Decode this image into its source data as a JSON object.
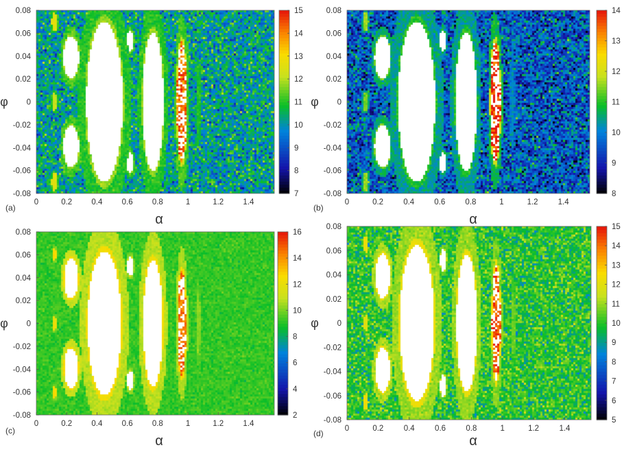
{
  "chart_data": [
    {
      "panel": "(a)",
      "type": "heatmap",
      "xlabel": "α",
      "ylabel": "φ",
      "xlim": [
        0,
        1.57
      ],
      "ylim": [
        -0.08,
        0.08
      ],
      "xticks": [
        "0",
        "0.2",
        "0.4",
        "0.6",
        "0.8",
        "1",
        "1.2",
        "1.4"
      ],
      "yticks": [
        "0.08",
        "0.06",
        "0.04",
        "0.02",
        "0",
        "-0.02",
        "-0.04",
        "-0.06",
        "-0.08"
      ],
      "colorbar": {
        "min": 7,
        "max": 15,
        "ticks": [
          "15",
          "14",
          "13",
          "12",
          "11",
          "10",
          "9",
          "8",
          "7"
        ]
      },
      "background": {
        "base": 10.2,
        "noise": 1.4
      },
      "islands": [
        {
          "x": 0.45,
          "y": 0.0,
          "rx": 0.13,
          "ry": 0.076,
          "interior": "white",
          "rim": 11.8,
          "halo": 11.0
        },
        {
          "x": 0.77,
          "y": 0.0,
          "rx": 0.075,
          "ry": 0.066,
          "interior": "white",
          "rim": 11.8,
          "halo": 11.0
        },
        {
          "x": 0.96,
          "y": 0.0,
          "rx": 0.036,
          "ry": 0.057,
          "interior": "dots",
          "rim": 12.3,
          "halo": 11.2
        },
        {
          "x": 0.23,
          "y": 0.039,
          "rx": 0.055,
          "ry": 0.02,
          "interior": "white",
          "rim": 11.8,
          "halo": 11.2
        },
        {
          "x": 0.23,
          "y": -0.039,
          "rx": 0.055,
          "ry": 0.02,
          "interior": "white",
          "rim": 11.8,
          "halo": 11.2
        },
        {
          "x": 0.12,
          "y": 0.07,
          "rx": 0.02,
          "ry": 0.008,
          "interior": "solid",
          "rim": 12.6,
          "halo": 11.0
        },
        {
          "x": 0.12,
          "y": -0.07,
          "rx": 0.02,
          "ry": 0.008,
          "interior": "solid",
          "rim": 12.6,
          "halo": 11.0
        },
        {
          "x": 0.12,
          "y": 0.0,
          "rx": 0.018,
          "ry": 0.008,
          "interior": "solid",
          "rim": 12.2,
          "halo": 11.0
        },
        {
          "x": 0.62,
          "y": 0.053,
          "rx": 0.025,
          "ry": 0.01,
          "interior": "white",
          "rim": 11.6,
          "halo": 11.0
        },
        {
          "x": 0.62,
          "y": -0.053,
          "rx": 0.025,
          "ry": 0.01,
          "interior": "white",
          "rim": 11.6,
          "halo": 11.0
        },
        {
          "x": 1.07,
          "y": 0.0,
          "rx": 0.012,
          "ry": 0.03,
          "interior": "none",
          "rim": 11.0,
          "halo": 10.8
        }
      ]
    },
    {
      "panel": "(b)",
      "type": "heatmap",
      "xlabel": "α",
      "ylabel": "φ",
      "xlim": [
        0,
        1.57
      ],
      "ylim": [
        -0.08,
        0.08
      ],
      "xticks": [
        "0",
        "0.2",
        "0.4",
        "0.6",
        "0.8",
        "1",
        "1.2",
        "1.4"
      ],
      "yticks": [
        "0.08",
        "0.06",
        "0.04",
        "0.02",
        "0",
        "-0.02",
        "-0.04",
        "-0.06",
        "-0.08"
      ],
      "colorbar": {
        "min": 8,
        "max": 14,
        "ticks": [
          "14",
          "13",
          "12",
          "11",
          "10",
          "9",
          "8"
        ]
      },
      "background": {
        "base": 9.6,
        "noise": 1.3
      },
      "islands": [
        {
          "x": 0.45,
          "y": 0.0,
          "rx": 0.13,
          "ry": 0.076,
          "interior": "white",
          "rim": 11.0,
          "halo": 10.4
        },
        {
          "x": 0.77,
          "y": 0.0,
          "rx": 0.075,
          "ry": 0.066,
          "interior": "white",
          "rim": 11.0,
          "halo": 10.4
        },
        {
          "x": 0.96,
          "y": 0.0,
          "rx": 0.036,
          "ry": 0.057,
          "interior": "dots",
          "rim": 12.0,
          "halo": 10.8
        },
        {
          "x": 0.23,
          "y": 0.039,
          "rx": 0.055,
          "ry": 0.02,
          "interior": "white",
          "rim": 11.3,
          "halo": 10.6
        },
        {
          "x": 0.23,
          "y": -0.039,
          "rx": 0.055,
          "ry": 0.02,
          "interior": "white",
          "rim": 11.3,
          "halo": 10.6
        },
        {
          "x": 0.12,
          "y": 0.07,
          "rx": 0.02,
          "ry": 0.008,
          "interior": "solid",
          "rim": 11.6,
          "halo": 10.4
        },
        {
          "x": 0.12,
          "y": -0.07,
          "rx": 0.02,
          "ry": 0.008,
          "interior": "solid",
          "rim": 11.6,
          "halo": 10.4
        },
        {
          "x": 0.12,
          "y": 0.0,
          "rx": 0.018,
          "ry": 0.008,
          "interior": "solid",
          "rim": 11.4,
          "halo": 10.4
        },
        {
          "x": 0.62,
          "y": 0.053,
          "rx": 0.025,
          "ry": 0.01,
          "interior": "white",
          "rim": 10.8,
          "halo": 10.3
        },
        {
          "x": 0.62,
          "y": -0.053,
          "rx": 0.025,
          "ry": 0.01,
          "interior": "white",
          "rim": 10.8,
          "halo": 10.3
        },
        {
          "x": 1.07,
          "y": 0.0,
          "rx": 0.012,
          "ry": 0.03,
          "interior": "none",
          "rim": 10.2,
          "halo": 10.0
        }
      ]
    },
    {
      "panel": "(c)",
      "type": "heatmap",
      "xlabel": "α",
      "ylabel": "φ",
      "xlim": [
        0,
        1.57
      ],
      "ylim": [
        -0.08,
        0.08
      ],
      "xticks": [
        "0",
        "0.2",
        "0.4",
        "0.6",
        "0.8",
        "1",
        "1.2",
        "1.4"
      ],
      "yticks": [
        "0.08",
        "0.06",
        "0.04",
        "0.02",
        "0",
        "-0.02",
        "-0.04",
        "-0.06",
        "-0.08"
      ],
      "colorbar": {
        "min": 2,
        "max": 16,
        "ticks": [
          "16",
          "14",
          "12",
          "10",
          "8",
          "6",
          "4",
          "2"
        ]
      },
      "background": {
        "base": 9.2,
        "noise": 0.6
      },
      "islands": [
        {
          "x": 0.45,
          "y": 0.0,
          "rx": 0.12,
          "ry": 0.068,
          "interior": "white",
          "rim": 12.4,
          "halo": 10.8
        },
        {
          "x": 0.77,
          "y": 0.0,
          "rx": 0.07,
          "ry": 0.06,
          "interior": "white",
          "rim": 12.4,
          "halo": 10.8
        },
        {
          "x": 0.96,
          "y": 0.0,
          "rx": 0.03,
          "ry": 0.05,
          "interior": "dots",
          "rim": 12.6,
          "halo": 10.6
        },
        {
          "x": 0.23,
          "y": 0.039,
          "rx": 0.05,
          "ry": 0.019,
          "interior": "white",
          "rim": 12.6,
          "halo": 11.0
        },
        {
          "x": 0.23,
          "y": -0.039,
          "rx": 0.05,
          "ry": 0.019,
          "interior": "white",
          "rim": 12.6,
          "halo": 11.0
        },
        {
          "x": 0.12,
          "y": 0.06,
          "rx": 0.012,
          "ry": 0.006,
          "interior": "solid",
          "rim": 12.6,
          "halo": 10.0
        },
        {
          "x": 0.12,
          "y": -0.06,
          "rx": 0.012,
          "ry": 0.006,
          "interior": "solid",
          "rim": 12.6,
          "halo": 10.0
        },
        {
          "x": 0.12,
          "y": 0.0,
          "rx": 0.012,
          "ry": 0.006,
          "interior": "solid",
          "rim": 12.2,
          "halo": 10.0
        },
        {
          "x": 0.62,
          "y": 0.05,
          "rx": 0.022,
          "ry": 0.009,
          "interior": "white",
          "rim": 11.6,
          "halo": 10.2
        },
        {
          "x": 0.62,
          "y": -0.05,
          "rx": 0.022,
          "ry": 0.009,
          "interior": "white",
          "rim": 11.6,
          "halo": 10.2
        },
        {
          "x": 1.07,
          "y": 0.0,
          "rx": 0.012,
          "ry": 0.028,
          "interior": "none",
          "rim": 10.2,
          "halo": 9.6
        }
      ]
    },
    {
      "panel": "(d)",
      "type": "heatmap",
      "xlabel": "α",
      "ylabel": "φ",
      "xlim": [
        0,
        1.57
      ],
      "ylim": [
        -0.08,
        0.08
      ],
      "xticks": [
        "0",
        "0.2",
        "0.4",
        "0.6",
        "0.8",
        "1",
        "1.2",
        "1.4"
      ],
      "yticks": [
        "0.08",
        "0.06",
        "0.04",
        "0.02",
        "0",
        "-0.02",
        "-0.04",
        "-0.06",
        "-0.08"
      ],
      "colorbar": {
        "min": 5,
        "max": 15,
        "ticks": [
          "15",
          "14",
          "13",
          "12",
          "11",
          "10",
          "9",
          "8",
          "7",
          "6",
          "5"
        ]
      },
      "background": {
        "base": 10.0,
        "noise": 1.3
      },
      "islands": [
        {
          "x": 0.45,
          "y": 0.0,
          "rx": 0.12,
          "ry": 0.07,
          "interior": "white",
          "rim": 12.2,
          "halo": 11.0
        },
        {
          "x": 0.77,
          "y": 0.0,
          "rx": 0.07,
          "ry": 0.062,
          "interior": "white",
          "rim": 12.2,
          "halo": 11.0
        },
        {
          "x": 0.96,
          "y": 0.0,
          "rx": 0.03,
          "ry": 0.052,
          "interior": "dots",
          "rim": 12.4,
          "halo": 10.8
        },
        {
          "x": 0.23,
          "y": 0.039,
          "rx": 0.05,
          "ry": 0.02,
          "interior": "white",
          "rim": 12.4,
          "halo": 11.2
        },
        {
          "x": 0.23,
          "y": -0.039,
          "rx": 0.05,
          "ry": 0.02,
          "interior": "white",
          "rim": 12.4,
          "halo": 11.2
        },
        {
          "x": 0.12,
          "y": 0.065,
          "rx": 0.014,
          "ry": 0.007,
          "interior": "solid",
          "rim": 12.3,
          "halo": 10.4
        },
        {
          "x": 0.12,
          "y": -0.065,
          "rx": 0.014,
          "ry": 0.007,
          "interior": "solid",
          "rim": 12.3,
          "halo": 10.4
        },
        {
          "x": 0.12,
          "y": 0.0,
          "rx": 0.013,
          "ry": 0.007,
          "interior": "solid",
          "rim": 12.0,
          "halo": 10.4
        },
        {
          "x": 0.62,
          "y": 0.052,
          "rx": 0.022,
          "ry": 0.01,
          "interior": "white",
          "rim": 11.6,
          "halo": 10.6
        },
        {
          "x": 0.62,
          "y": -0.052,
          "rx": 0.022,
          "ry": 0.01,
          "interior": "white",
          "rim": 11.6,
          "halo": 10.6
        },
        {
          "x": 1.07,
          "y": 0.0,
          "rx": 0.012,
          "ry": 0.028,
          "interior": "none",
          "rim": 10.6,
          "halo": 10.2
        }
      ]
    }
  ]
}
